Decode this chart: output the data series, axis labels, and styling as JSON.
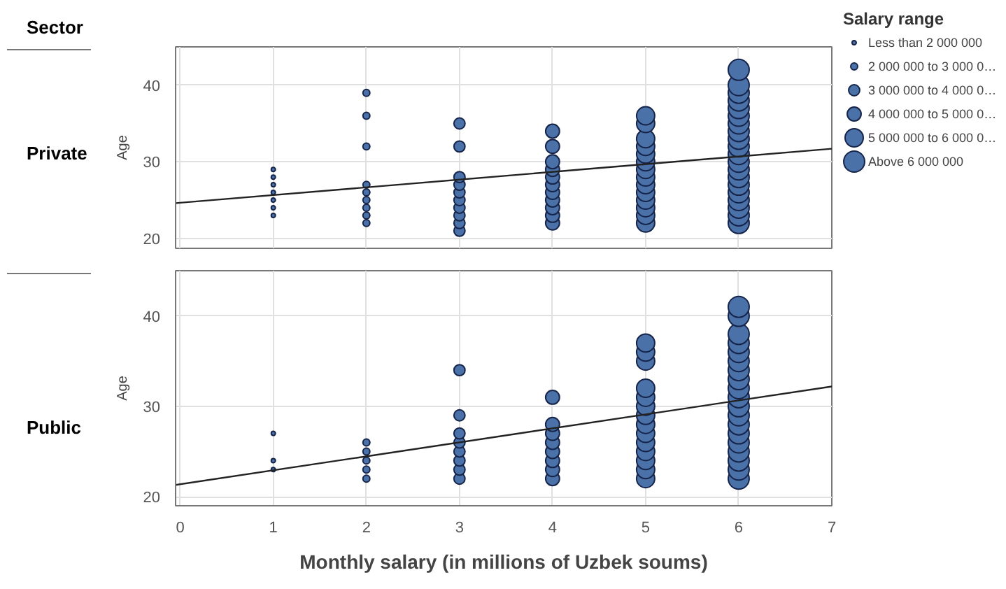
{
  "chart_data": [
    {
      "type": "bubble",
      "title": "Private",
      "annotations": [
        "Sector"
      ],
      "ylabel": "Age",
      "xlim": [
        -0.05,
        7
      ],
      "xticks": [
        0,
        1,
        2,
        3,
        4,
        5,
        6,
        7
      ],
      "ylim": [
        18.7,
        45
      ],
      "yticks": [
        20,
        30,
        40
      ],
      "grid": true,
      "tick_labels": "y",
      "marker": "circle",
      "legend": "right",
      "legend_title": "Salary range",
      "series": [
        {
          "name": "Less than 2 000 000",
          "color": "#4a72a8",
          "x": [
            1,
            1,
            1,
            1,
            1,
            1,
            1
          ],
          "values": [
            23,
            24,
            25,
            26,
            27,
            28,
            29
          ],
          "sizes": [
            0.04,
            0.04,
            0.04,
            0.04,
            0.04,
            0.04,
            0.04
          ]
        },
        {
          "name": "2 000 000 to 3 000 0…",
          "color": "#4a72a8",
          "x": [
            2,
            2,
            2,
            2,
            2,
            2,
            2,
            2,
            2
          ],
          "values": [
            22,
            23,
            24,
            25,
            26,
            27,
            32,
            36,
            39
          ],
          "sizes": [
            0.11,
            0.11,
            0.11,
            0.11,
            0.11,
            0.11,
            0.11,
            0.11,
            0.11
          ]
        },
        {
          "name": "3 000 000 to 4 000 0…",
          "color": "#4a72a8",
          "x": [
            3,
            3,
            3,
            3,
            3,
            3,
            3,
            3,
            3,
            3
          ],
          "values": [
            21,
            22,
            23,
            24,
            25,
            26,
            27,
            28,
            32,
            35
          ],
          "sizes": [
            0.28,
            0.28,
            0.28,
            0.28,
            0.28,
            0.28,
            0.28,
            0.28,
            0.28,
            0.28
          ]
        },
        {
          "name": "4 000 000 to 5 000 0…",
          "color": "#4a72a8",
          "x": [
            4,
            4,
            4,
            4,
            4,
            4,
            4,
            4,
            4,
            4,
            4
          ],
          "values": [
            22,
            23,
            24,
            25,
            26,
            27,
            28,
            29,
            30,
            32,
            34
          ],
          "sizes": [
            0.44,
            0.44,
            0.44,
            0.44,
            0.44,
            0.44,
            0.44,
            0.44,
            0.44,
            0.44,
            0.44
          ]
        },
        {
          "name": "5 000 000 to 6 000 0…",
          "color": "#4a72a8",
          "x": [
            5,
            5,
            5,
            5,
            5,
            5,
            5,
            5,
            5,
            5,
            5,
            5,
            5,
            5
          ],
          "values": [
            22,
            23,
            24,
            25,
            26,
            27,
            28,
            29,
            30,
            31,
            32,
            33,
            35,
            36
          ],
          "sizes": [
            0.75,
            0.75,
            0.75,
            0.75,
            0.75,
            0.75,
            0.75,
            0.75,
            0.75,
            0.75,
            0.75,
            0.75,
            0.75,
            0.75
          ]
        },
        {
          "name": "Above 6 000 000",
          "color": "#4a72a8",
          "x": [
            6,
            6,
            6,
            6,
            6,
            6,
            6,
            6,
            6,
            6,
            6,
            6,
            6,
            6,
            6,
            6,
            6,
            6,
            6,
            6
          ],
          "values": [
            22,
            23,
            24,
            25,
            26,
            27,
            28,
            29,
            30,
            31,
            32,
            33,
            34,
            35,
            36,
            37,
            38,
            39,
            40,
            42
          ],
          "sizes": [
            1,
            1,
            1,
            1,
            1,
            1,
            1,
            1,
            1,
            1,
            1,
            1,
            1,
            1,
            1,
            1,
            1,
            1,
            1,
            1
          ]
        },
        {
          "type": "line",
          "marker": "none",
          "color": "#222222",
          "x": [
            -0.05,
            7
          ],
          "values": [
            24.6,
            31.7
          ]
        }
      ]
    },
    {
      "type": "bubble",
      "title": "Public",
      "ylabel": "Age",
      "xlabel": "Monthly salary (in millions of Uzbek soums)",
      "xlim": [
        -0.05,
        7
      ],
      "xticks": [
        0,
        1,
        2,
        3,
        4,
        5,
        6,
        7
      ],
      "ylim": [
        19,
        45
      ],
      "yticks": [
        20,
        30,
        40
      ],
      "grid": true,
      "marker": "circle",
      "series": [
        {
          "color": "#4a72a8",
          "x": [
            1,
            1,
            1
          ],
          "values": [
            23,
            24,
            27
          ],
          "sizes": [
            0.04,
            0.04,
            0.04
          ]
        },
        {
          "color": "#4a72a8",
          "x": [
            2,
            2,
            2,
            2,
            2
          ],
          "values": [
            22,
            23,
            24,
            25,
            26
          ],
          "sizes": [
            0.11,
            0.11,
            0.11,
            0.11,
            0.11
          ]
        },
        {
          "color": "#4a72a8",
          "x": [
            3,
            3,
            3,
            3,
            3,
            3,
            3,
            3
          ],
          "values": [
            22,
            23,
            24,
            25,
            26,
            27,
            29,
            34
          ],
          "sizes": [
            0.28,
            0.28,
            0.28,
            0.28,
            0.28,
            0.28,
            0.28,
            0.28
          ]
        },
        {
          "color": "#4a72a8",
          "x": [
            4,
            4,
            4,
            4,
            4,
            4,
            4,
            4
          ],
          "values": [
            22,
            23,
            24,
            25,
            26,
            27,
            28,
            31
          ],
          "sizes": [
            0.44,
            0.44,
            0.44,
            0.44,
            0.44,
            0.44,
            0.44,
            0.44
          ]
        },
        {
          "color": "#4a72a8",
          "x": [
            5,
            5,
            5,
            5,
            5,
            5,
            5,
            5,
            5,
            5,
            5,
            5,
            5,
            5
          ],
          "values": [
            22,
            23,
            24,
            25,
            26,
            27,
            28,
            29,
            30,
            31,
            32,
            35,
            36,
            37
          ],
          "sizes": [
            0.75,
            0.75,
            0.75,
            0.75,
            0.75,
            0.75,
            0.75,
            0.75,
            0.75,
            0.75,
            0.75,
            0.75,
            0.75,
            0.75
          ]
        },
        {
          "color": "#4a72a8",
          "x": [
            6,
            6,
            6,
            6,
            6,
            6,
            6,
            6,
            6,
            6,
            6,
            6,
            6,
            6,
            6,
            6,
            6,
            6,
            6
          ],
          "values": [
            22,
            23,
            24,
            25,
            26,
            27,
            28,
            29,
            30,
            31,
            32,
            33,
            34,
            35,
            36,
            37,
            38,
            40,
            41
          ],
          "sizes": [
            1,
            1,
            1,
            1,
            1,
            1,
            1,
            1,
            1,
            1,
            1,
            1,
            1,
            1,
            1,
            1,
            1,
            1,
            1
          ]
        },
        {
          "type": "line",
          "marker": "none",
          "color": "#222222",
          "x": [
            -0.05,
            7
          ],
          "values": [
            21.3,
            32.2
          ]
        }
      ]
    }
  ]
}
